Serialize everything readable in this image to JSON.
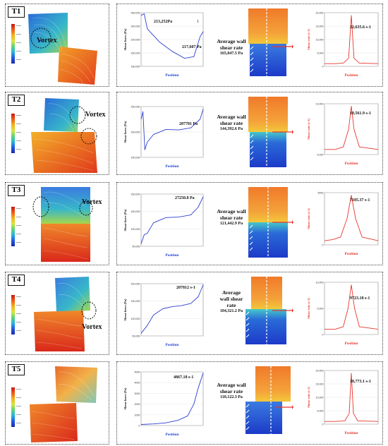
{
  "colors": {
    "shear_force_curve": "#2b3fd0",
    "shear_rate_curve": "#e8352a",
    "arrow_blue": "#1f3fcf",
    "arrow_red": "#e8352a",
    "flow_cool": "#2a6bd8",
    "flow_warm": "#e85a1c"
  },
  "rows": [
    {
      "id": "T1",
      "label": "T1",
      "vortex_text": "Vortex",
      "shear_force": {
        "ylabel": "Shear force (Pa)",
        "xlabel": "Position",
        "yticks": [
          "260,000",
          "240,000",
          "220,000",
          "200,000",
          "180,000"
        ],
        "legend": "1",
        "peak_annotation": "213,252Pa",
        "end_annotation": "217,607 Pa"
      },
      "avg": {
        "line1": "Average wall",
        "line2": "shear rate",
        "value": "165,047.5 Pa"
      },
      "shear_rate": {
        "ylabel": "Shear rate (s-1)",
        "xlabel": "Position",
        "yticks": [
          "20,000",
          "15,000",
          "10,000",
          "5,000",
          "0"
        ],
        "peak_annotation": "22,635.6 s-1"
      }
    },
    {
      "id": "T2",
      "label": "T2",
      "vortex_text": "Vortex",
      "shear_force": {
        "ylabel": "Shear force (Pa)",
        "xlabel": "Position",
        "yticks": [
          "250,000",
          "200,000",
          "150,000"
        ],
        "peak_annotation": "207781 Pa"
      },
      "avg": {
        "line1": "Average wall",
        "line2": "shear rate",
        "value": "144,392.6 Pa"
      },
      "shear_rate": {
        "ylabel": "Shear rate (s-1)",
        "xlabel": "Position",
        "yticks": [
          "10,000",
          "5,000"
        ],
        "peak_annotation": "10,561.9 s-1"
      }
    },
    {
      "id": "T3",
      "label": "T3",
      "vortex_text": "Vortex",
      "shear_force": {
        "ylabel": "Shear force (Pa)",
        "xlabel": "Position",
        "yticks": [
          "200,000",
          "150,000",
          "100,000",
          "50,000"
        ],
        "peak_annotation": "27250.8 Pa"
      },
      "avg": {
        "line1": "Average wall",
        "line2": "shear rate",
        "value": "121,442.9 Pa"
      },
      "shear_rate": {
        "ylabel": "Shear rate (s-1)",
        "xlabel": "Position",
        "yticks": [
          "5000",
          "0"
        ],
        "peak_annotation": "7185.37 s-1"
      }
    },
    {
      "id": "T4",
      "label": "T4",
      "vortex_text": "Vortex",
      "shear_force": {
        "ylabel": "Shear force (Pa)",
        "xlabel": "Position",
        "yticks": [
          "200,000",
          "150,000",
          "100,000",
          "50,000"
        ],
        "peak_annotation": "207812 s-1"
      },
      "avg": {
        "line1": "Average",
        "line2": "wall shear",
        "line3": "rate",
        "value": "104,321.2 Pa"
      },
      "shear_rate": {
        "ylabel": "Shear rate (s-1)",
        "xlabel": "Position",
        "yticks": [
          "10,000",
          "5,000",
          "0"
        ],
        "peak_annotation": "9723.18 s-1"
      }
    },
    {
      "id": "T5",
      "label": "T5",
      "vortex_text": "",
      "shear_force": {
        "ylabel": "Shear force (Pa)",
        "xlabel": "Position",
        "yticks": [
          "5000",
          "4000",
          "3000",
          "2000",
          "1000",
          "0"
        ],
        "peak_annotation": "4867.18 s-1"
      },
      "avg": {
        "line1": "Average wall",
        "line2": "shear rate",
        "value": "110,122.3 Pa"
      },
      "shear_rate": {
        "ylabel": "Shear rate (s-1)",
        "xlabel": "Position",
        "yticks": [
          "20,000",
          "15,000",
          "10,000",
          "5,000",
          "0"
        ],
        "peak_annotation": "18,773.1 s-1"
      }
    }
  ]
}
